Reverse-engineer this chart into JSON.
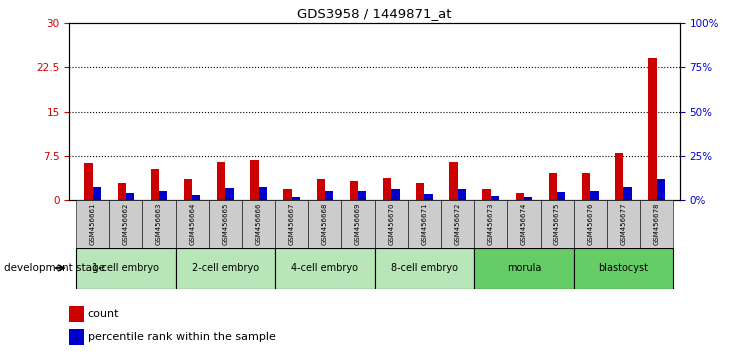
{
  "title": "GDS3958 / 1449871_at",
  "samples": [
    "GSM456661",
    "GSM456662",
    "GSM456663",
    "GSM456664",
    "GSM456665",
    "GSM456666",
    "GSM456667",
    "GSM456668",
    "GSM456669",
    "GSM456670",
    "GSM456671",
    "GSM456672",
    "GSM456673",
    "GSM456674",
    "GSM456675",
    "GSM456676",
    "GSM456677",
    "GSM456678"
  ],
  "count": [
    6.3,
    2.8,
    5.2,
    3.5,
    6.5,
    6.8,
    1.8,
    3.5,
    3.2,
    3.8,
    2.8,
    6.5,
    1.8,
    1.2,
    4.5,
    4.5,
    8.0,
    24.0
  ],
  "percentile": [
    7.5,
    4.0,
    5.0,
    3.0,
    7.0,
    7.5,
    1.5,
    5.0,
    5.0,
    6.0,
    3.5,
    6.0,
    2.5,
    1.5,
    4.5,
    5.0,
    7.5,
    12.0
  ],
  "stages": [
    {
      "label": "1-cell embryo",
      "start": 0,
      "end": 3
    },
    {
      "label": "2-cell embryo",
      "start": 3,
      "end": 6
    },
    {
      "label": "4-cell embryo",
      "start": 6,
      "end": 9
    },
    {
      "label": "8-cell embryo",
      "start": 9,
      "end": 12
    },
    {
      "label": "morula",
      "start": 12,
      "end": 15
    },
    {
      "label": "blastocyst",
      "start": 15,
      "end": 18
    }
  ],
  "ylim_left": [
    0,
    30
  ],
  "ylim_right": [
    0,
    100
  ],
  "yticks_left": [
    0,
    7.5,
    15,
    22.5,
    30
  ],
  "yticks_right": [
    0,
    25,
    50,
    75,
    100
  ],
  "ytick_labels_left": [
    "0",
    "7.5",
    "15",
    "22.5",
    "30"
  ],
  "ytick_labels_right": [
    "0%",
    "25%",
    "50%",
    "75%",
    "100%"
  ],
  "bar_width": 0.25,
  "count_color": "#cc0000",
  "percentile_color": "#0000cc",
  "stage_label": "development stage",
  "legend_count": "count",
  "legend_percentile": "percentile rank within the sample",
  "bg_color": "#ffffff",
  "dotted_lines": [
    7.5,
    15,
    22.5
  ],
  "stage_color_light": "#b8e6b8",
  "stage_color_dark": "#66cc66",
  "sample_label_bg": "#cccccc"
}
